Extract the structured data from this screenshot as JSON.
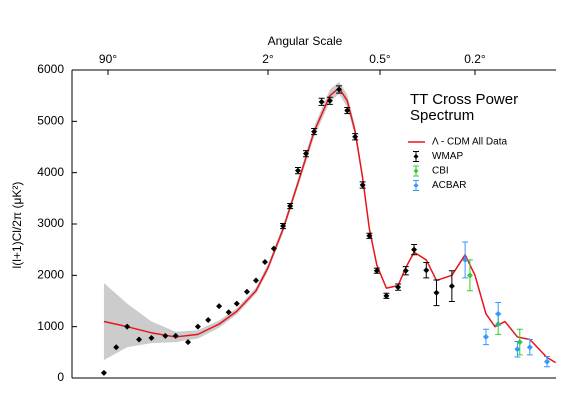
{
  "chart_data": {
    "type": "scatter",
    "title": "TT Cross Power Spectrum",
    "xlabel": "Angular Scale",
    "ylabel": "l(l+1)Cl/2π (μK²)",
    "xlim": [
      200,
      0.09
    ],
    "xticks": [
      {
        "value": 90,
        "label": "90°"
      },
      {
        "value": 2,
        "label": "2°"
      },
      {
        "value": 0.5,
        "label": "0.5°"
      },
      {
        "value": 0.2,
        "label": "0.2°"
      }
    ],
    "ylim": [
      0,
      6000
    ],
    "yticks": [
      0,
      1000,
      2000,
      3000,
      4000,
      5000,
      6000
    ],
    "series": [
      {
        "name": "Λ - CDM All Data",
        "color": "#e8141b",
        "style": "line",
        "x": [
          99,
          57,
          32,
          18,
          10.6,
          6.4,
          4.2,
          2.66,
          2,
          1.66,
          1.38,
          1.13,
          0.93,
          0.83,
          0.75,
          0.68,
          0.62,
          0.57,
          0.52,
          0.47,
          0.42,
          0.39,
          0.36,
          0.32,
          0.29,
          0.25,
          0.22,
          0.2,
          0.18,
          0.165,
          0.15,
          0.133,
          0.118,
          0.1,
          0.092
        ],
        "values": [
          1100,
          1000,
          880,
          800,
          850,
          1050,
          1300,
          1700,
          2150,
          2900,
          3800,
          4800,
          5500,
          5650,
          5400,
          4800,
          3900,
          2900,
          2200,
          1750,
          1800,
          2150,
          2450,
          2300,
          1900,
          2000,
          2400,
          2000,
          1250,
          1000,
          1100,
          800,
          750,
          400,
          300
        ],
        "lower": [
          350,
          600,
          680,
          700,
          770,
          980,
          1240,
          1640,
          2080,
          2830,
          3720,
          4700,
          5380,
          5530,
          5280,
          4700,
          3820,
          2840,
          2150,
          null,
          null,
          null,
          null,
          null,
          null,
          null,
          null,
          null,
          null,
          null,
          null,
          null,
          null,
          null,
          null
        ],
        "upper": [
          1850,
          1450,
          1100,
          900,
          930,
          1120,
          1360,
          1760,
          2220,
          2970,
          3880,
          4900,
          5620,
          5770,
          5520,
          4900,
          3980,
          2960,
          2250,
          null,
          null,
          null,
          null,
          null,
          null,
          null,
          null,
          null,
          null,
          null,
          null,
          null,
          null,
          null,
          null
        ],
        "band_color": "#cccccc"
      },
      {
        "name": "WMAP",
        "color": "#000000",
        "style": "points",
        "x": [
          99,
          74,
          57,
          43,
          32,
          23,
          18,
          13.4,
          10.6,
          8.3,
          6.4,
          5.1,
          4.2,
          3.3,
          2.66,
          2.15,
          1.86,
          1.66,
          1.52,
          1.38,
          1.25,
          1.13,
          1.03,
          0.93,
          0.83,
          0.75,
          0.68,
          0.62,
          0.57,
          0.52,
          0.47,
          0.42,
          0.39,
          0.36,
          0.32,
          0.29,
          0.25
        ],
        "values": [
          100,
          600,
          1000,
          750,
          780,
          820,
          820,
          700,
          1000,
          1130,
          1400,
          1280,
          1450,
          1680,
          1900,
          2260,
          2520,
          2960,
          3350,
          4040,
          4370,
          4800,
          5380,
          5400,
          5620,
          5210,
          4700,
          3760,
          2770,
          2090,
          1600,
          1770,
          2090,
          2500,
          2100,
          1660,
          1790
        ],
        "errors": [
          0,
          0,
          0,
          0,
          0,
          0,
          0,
          0,
          0,
          0,
          0,
          0,
          0,
          0,
          0,
          0,
          0,
          50,
          50,
          60,
          60,
          60,
          70,
          70,
          70,
          60,
          60,
          60,
          50,
          50,
          50,
          60,
          80,
          100,
          150,
          250,
          300
        ]
      },
      {
        "name": "CBI",
        "color": "#33cc33",
        "style": "points",
        "x": [
          0.21,
          0.16,
          0.13
        ],
        "values": [
          2000,
          1050,
          700
        ],
        "errors": [
          300,
          200,
          250
        ]
      },
      {
        "name": "ACBAR",
        "color": "#3399ff",
        "style": "points",
        "x": [
          0.22,
          0.18,
          0.16,
          0.133,
          0.118,
          0.1
        ],
        "values": [
          2300,
          800,
          1250,
          560,
          600,
          320
        ],
        "errors": [
          350,
          150,
          220,
          150,
          150,
          100
        ]
      }
    ]
  }
}
